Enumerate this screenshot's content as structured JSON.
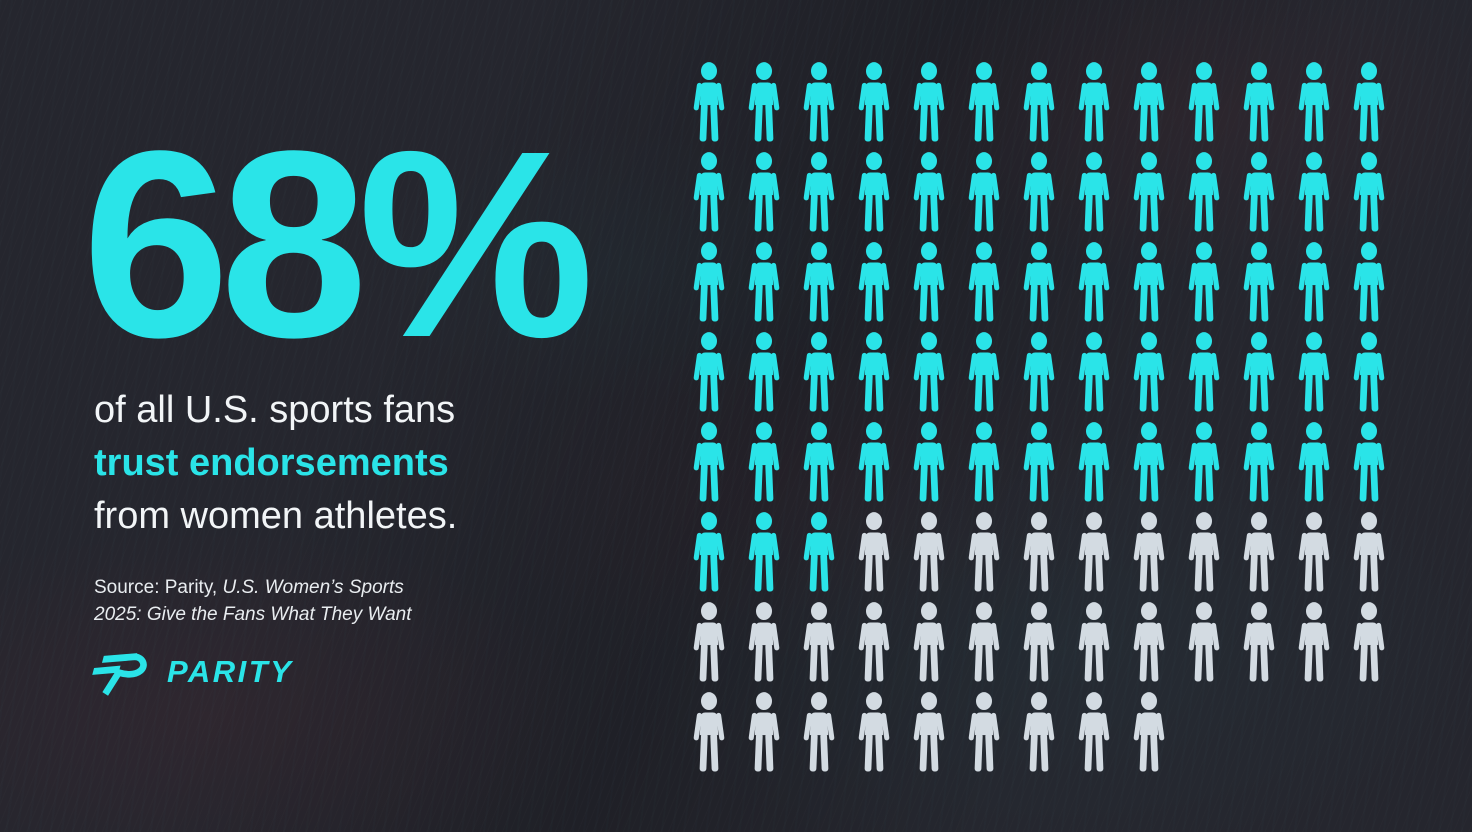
{
  "theme": {
    "background": "#25262e",
    "accent": "#2ae4e8",
    "text_primary": "#f2f5f7",
    "pictogram_filled": "#2ae4e8",
    "pictogram_empty": "#d3dbe2"
  },
  "stat": {
    "value": "68%"
  },
  "headline": {
    "line1": "of all U.S. sports fans",
    "line2": "trust endorsements",
    "line3": "from women athletes."
  },
  "source": {
    "prefix": "Source: Parity, ",
    "citation_line1": "U.S. Women’s Sports",
    "citation_line2": "2025: Give the Fans What They Want"
  },
  "logo": {
    "wordmark": "PARITY"
  },
  "chart_data": {
    "type": "pictogram",
    "title": "68% of all U.S. sports fans trust endorsements from women athletes.",
    "value_percent": 68,
    "total_icons": 100,
    "filled_icons": 68,
    "empty_icons": 32,
    "columns": 13,
    "rows": [
      {
        "filled": 13,
        "empty": 0
      },
      {
        "filled": 13,
        "empty": 0
      },
      {
        "filled": 13,
        "empty": 0
      },
      {
        "filled": 13,
        "empty": 0
      },
      {
        "filled": 13,
        "empty": 0
      },
      {
        "filled": 3,
        "empty": 10
      },
      {
        "filled": 0,
        "empty": 13
      },
      {
        "filled": 0,
        "empty": 9
      }
    ],
    "icon": "person",
    "filled_color": "#2ae4e8",
    "empty_color": "#d3dbe2"
  }
}
